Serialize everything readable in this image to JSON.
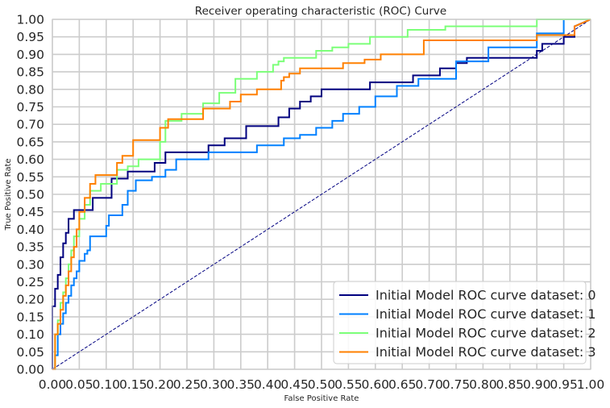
{
  "chart_data": {
    "type": "line",
    "title": "Receiver operating characteristic (ROC) Curve",
    "xlabel": "False Positive Rate",
    "ylabel": "True Positive Rate",
    "xlim": [
      0,
      1
    ],
    "ylim": [
      0,
      1
    ],
    "xticks": [
      "0.00",
      "0.05",
      "0.10",
      "0.15",
      "0.20",
      "0.25",
      "0.30",
      "0.35",
      "0.40",
      "0.45",
      "0.50",
      "0.55",
      "0.60",
      "0.65",
      "0.70",
      "0.75",
      "0.80",
      "0.85",
      "0.90",
      "0.95",
      "1.00"
    ],
    "yticks": [
      "0.00",
      "0.05",
      "0.10",
      "0.15",
      "0.20",
      "0.25",
      "0.30",
      "0.35",
      "0.40",
      "0.45",
      "0.50",
      "0.55",
      "0.60",
      "0.65",
      "0.70",
      "0.75",
      "0.80",
      "0.85",
      "0.90",
      "0.95",
      "1.00"
    ],
    "grid": true,
    "legend_position": "lower-right",
    "diagonal": {
      "x": [
        0,
        1
      ],
      "y": [
        0,
        1
      ],
      "color": "#000080",
      "style": "dashed"
    },
    "series": [
      {
        "name": "Initial Model ROC curve dataset: 0",
        "color": "#00007f",
        "x": [
          0,
          0,
          0.005,
          0.005,
          0.01,
          0.01,
          0.015,
          0.015,
          0.02,
          0.02,
          0.025,
          0.025,
          0.03,
          0.03,
          0.04,
          0.04,
          0.06,
          0.06,
          0.075,
          0.075,
          0.085,
          0.085,
          0.11,
          0.11,
          0.12,
          0.12,
          0.14,
          0.14,
          0.19,
          0.19,
          0.21,
          0.21,
          0.29,
          0.29,
          0.32,
          0.32,
          0.36,
          0.36,
          0.42,
          0.42,
          0.44,
          0.44,
          0.46,
          0.46,
          0.48,
          0.48,
          0.5,
          0.5,
          0.59,
          0.59,
          0.67,
          0.67,
          0.72,
          0.72,
          0.75,
          0.75,
          0.77,
          0.77,
          0.79,
          0.79,
          0.9,
          0.9,
          0.91,
          0.91,
          0.95,
          0.95,
          0.97,
          0.97,
          1
        ],
        "y": [
          0,
          0.18,
          0.18,
          0.23,
          0.23,
          0.27,
          0.27,
          0.32,
          0.32,
          0.36,
          0.36,
          0.39,
          0.39,
          0.43,
          0.43,
          0.455,
          0.455,
          0.455,
          0.455,
          0.49,
          0.49,
          0.49,
          0.49,
          0.545,
          0.545,
          0.545,
          0.545,
          0.565,
          0.565,
          0.59,
          0.59,
          0.62,
          0.62,
          0.64,
          0.64,
          0.66,
          0.66,
          0.695,
          0.695,
          0.72,
          0.72,
          0.745,
          0.745,
          0.765,
          0.765,
          0.78,
          0.78,
          0.8,
          0.8,
          0.82,
          0.82,
          0.84,
          0.84,
          0.86,
          0.86,
          0.875,
          0.875,
          0.89,
          0.89,
          0.89,
          0.89,
          0.91,
          0.91,
          0.93,
          0.93,
          0.95,
          0.95,
          0.98,
          1
        ]
      },
      {
        "name": "Initial Model ROC curve dataset: 1",
        "color": "#0080ff",
        "x": [
          0,
          0.005,
          0.005,
          0.01,
          0.01,
          0.015,
          0.015,
          0.02,
          0.02,
          0.025,
          0.025,
          0.03,
          0.03,
          0.035,
          0.035,
          0.04,
          0.04,
          0.045,
          0.045,
          0.05,
          0.05,
          0.06,
          0.06,
          0.065,
          0.065,
          0.07,
          0.07,
          0.1,
          0.1,
          0.105,
          0.105,
          0.13,
          0.13,
          0.14,
          0.14,
          0.155,
          0.155,
          0.185,
          0.185,
          0.21,
          0.21,
          0.23,
          0.23,
          0.29,
          0.29,
          0.38,
          0.38,
          0.43,
          0.43,
          0.46,
          0.46,
          0.49,
          0.49,
          0.52,
          0.52,
          0.54,
          0.54,
          0.57,
          0.57,
          0.6,
          0.6,
          0.64,
          0.64,
          0.68,
          0.68,
          0.75,
          0.75,
          0.81,
          0.81,
          0.9,
          0.9,
          0.95,
          0.95,
          1
        ],
        "y": [
          0,
          0,
          0.04,
          0.04,
          0.1,
          0.1,
          0.13,
          0.13,
          0.16,
          0.16,
          0.19,
          0.19,
          0.21,
          0.21,
          0.24,
          0.24,
          0.26,
          0.26,
          0.28,
          0.28,
          0.31,
          0.31,
          0.33,
          0.33,
          0.34,
          0.34,
          0.38,
          0.38,
          0.41,
          0.41,
          0.44,
          0.44,
          0.47,
          0.47,
          0.51,
          0.51,
          0.54,
          0.54,
          0.55,
          0.55,
          0.57,
          0.57,
          0.6,
          0.6,
          0.62,
          0.62,
          0.64,
          0.64,
          0.66,
          0.66,
          0.67,
          0.67,
          0.69,
          0.69,
          0.71,
          0.71,
          0.73,
          0.73,
          0.75,
          0.75,
          0.78,
          0.78,
          0.81,
          0.81,
          0.83,
          0.83,
          0.88,
          0.88,
          0.92,
          0.92,
          0.96,
          0.96,
          1,
          1
        ]
      },
      {
        "name": "Initial Model ROC curve dataset: 2",
        "color": "#7cff79",
        "x": [
          0,
          0.005,
          0.005,
          0.01,
          0.01,
          0.015,
          0.015,
          0.02,
          0.02,
          0.025,
          0.025,
          0.03,
          0.03,
          0.035,
          0.035,
          0.04,
          0.04,
          0.05,
          0.05,
          0.06,
          0.06,
          0.07,
          0.07,
          0.09,
          0.09,
          0.12,
          0.12,
          0.14,
          0.14,
          0.16,
          0.16,
          0.2,
          0.2,
          0.21,
          0.21,
          0.24,
          0.24,
          0.28,
          0.28,
          0.31,
          0.31,
          0.34,
          0.34,
          0.38,
          0.38,
          0.41,
          0.41,
          0.42,
          0.42,
          0.43,
          0.43,
          0.49,
          0.49,
          0.52,
          0.52,
          0.55,
          0.55,
          0.59,
          0.59,
          0.66,
          0.66,
          0.73,
          0.73,
          0.9,
          0.9,
          0.95,
          0.95,
          1
        ],
        "y": [
          0,
          0,
          0.1,
          0.1,
          0.14,
          0.14,
          0.19,
          0.19,
          0.22,
          0.22,
          0.26,
          0.26,
          0.3,
          0.3,
          0.34,
          0.34,
          0.38,
          0.38,
          0.43,
          0.43,
          0.47,
          0.47,
          0.51,
          0.51,
          0.53,
          0.53,
          0.57,
          0.57,
          0.58,
          0.58,
          0.6,
          0.6,
          0.65,
          0.65,
          0.71,
          0.71,
          0.73,
          0.73,
          0.76,
          0.76,
          0.79,
          0.79,
          0.83,
          0.83,
          0.85,
          0.85,
          0.87,
          0.87,
          0.88,
          0.88,
          0.89,
          0.89,
          0.91,
          0.91,
          0.92,
          0.92,
          0.93,
          0.93,
          0.95,
          0.95,
          0.97,
          0.97,
          0.98,
          0.98,
          1,
          1,
          1,
          1
        ]
      },
      {
        "name": "Initial Model ROC curve dataset: 3",
        "color": "#ff8000",
        "x": [
          0,
          0.005,
          0.005,
          0.01,
          0.01,
          0.015,
          0.015,
          0.02,
          0.02,
          0.025,
          0.025,
          0.03,
          0.03,
          0.035,
          0.035,
          0.04,
          0.04,
          0.045,
          0.045,
          0.05,
          0.05,
          0.06,
          0.06,
          0.07,
          0.07,
          0.08,
          0.08,
          0.12,
          0.12,
          0.13,
          0.13,
          0.15,
          0.15,
          0.2,
          0.2,
          0.215,
          0.215,
          0.28,
          0.28,
          0.33,
          0.33,
          0.35,
          0.35,
          0.38,
          0.38,
          0.425,
          0.425,
          0.43,
          0.43,
          0.44,
          0.44,
          0.46,
          0.46,
          0.54,
          0.54,
          0.58,
          0.58,
          0.61,
          0.61,
          0.69,
          0.69,
          0.9,
          0.9,
          0.97,
          0.97,
          1
        ],
        "y": [
          0,
          0,
          0.1,
          0.1,
          0.13,
          0.13,
          0.17,
          0.17,
          0.21,
          0.21,
          0.24,
          0.24,
          0.28,
          0.28,
          0.32,
          0.32,
          0.35,
          0.35,
          0.4,
          0.4,
          0.45,
          0.45,
          0.49,
          0.49,
          0.53,
          0.53,
          0.555,
          0.555,
          0.59,
          0.59,
          0.61,
          0.61,
          0.655,
          0.655,
          0.69,
          0.69,
          0.715,
          0.715,
          0.745,
          0.745,
          0.765,
          0.765,
          0.785,
          0.785,
          0.8,
          0.8,
          0.825,
          0.825,
          0.835,
          0.835,
          0.845,
          0.845,
          0.86,
          0.86,
          0.875,
          0.875,
          0.885,
          0.885,
          0.9,
          0.9,
          0.94,
          0.94,
          0.955,
          0.955,
          0.98,
          1
        ]
      }
    ]
  }
}
